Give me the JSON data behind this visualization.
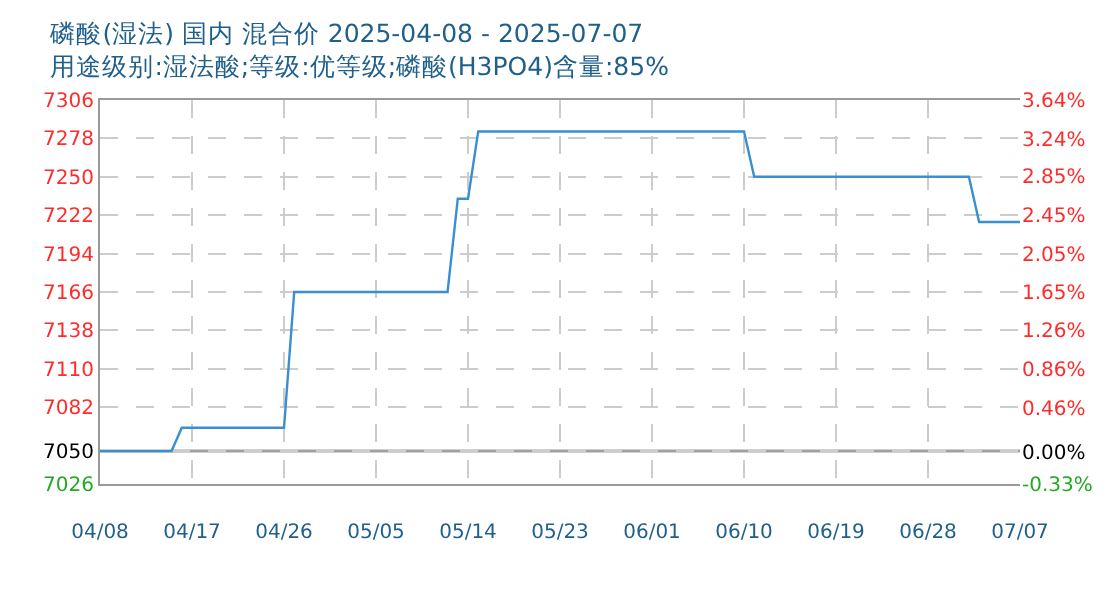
{
  "chart_data": {
    "type": "line",
    "title": "磷酸(湿法) 国内 混合价 2025-04-08 - 2025-07-07",
    "subtitle": "用途级别:湿法酸;等级:优等级;磷酸(H3PO4)含量:85%",
    "x": [
      "2025-04-08",
      "2025-04-15",
      "2025-04-16",
      "2025-04-26",
      "2025-04-27",
      "2025-05-12",
      "2025-05-13",
      "2025-05-14",
      "2025-05-15",
      "2025-06-10",
      "2025-06-11",
      "2025-07-02",
      "2025-07-03",
      "2025-07-07"
    ],
    "series": [
      {
        "color": "#3a8fd0",
        "values": [
          7050,
          7050,
          7067,
          7067,
          7166,
          7166,
          7234,
          7234,
          7283,
          7283,
          7250,
          7250,
          7217,
          7217
        ]
      }
    ],
    "xlim": [
      "2025-04-08",
      "2025-07-07"
    ],
    "xticks": [
      {
        "value": "2025-04-08",
        "label": "04/08"
      },
      {
        "value": "2025-04-17",
        "label": "04/17"
      },
      {
        "value": "2025-04-26",
        "label": "04/26"
      },
      {
        "value": "2025-05-05",
        "label": "05/05"
      },
      {
        "value": "2025-05-14",
        "label": "05/14"
      },
      {
        "value": "2025-05-23",
        "label": "05/23"
      },
      {
        "value": "2025-06-01",
        "label": "06/01"
      },
      {
        "value": "2025-06-10",
        "label": "06/10"
      },
      {
        "value": "2025-06-19",
        "label": "06/19"
      },
      {
        "value": "2025-06-28",
        "label": "06/28"
      },
      {
        "value": "2025-07-07",
        "label": "07/07"
      }
    ],
    "ylim": [
      7026,
      7306
    ],
    "yticks": [
      7026,
      7050,
      7082,
      7110,
      7138,
      7166,
      7194,
      7222,
      7250,
      7278,
      7306
    ],
    "y2lim": [
      -0.33,
      3.64
    ],
    "y2ticks": [
      {
        "value": -0.33,
        "label": "-0.33%"
      },
      {
        "value": 0,
        "label": "0.00%"
      },
      {
        "value": 0.46,
        "label": "0.46%"
      },
      {
        "value": 0.86,
        "label": "0.86%"
      },
      {
        "value": 1.26,
        "label": "1.26%"
      },
      {
        "value": 1.65,
        "label": "1.65%"
      },
      {
        "value": 2.05,
        "label": "2.05%"
      },
      {
        "value": 2.45,
        "label": "2.45%"
      },
      {
        "value": 2.85,
        "label": "2.85%"
      },
      {
        "value": 3.24,
        "label": "3.24%"
      },
      {
        "value": 3.64,
        "label": "3.64%"
      }
    ],
    "ref_lines": [
      {
        "axis": "y",
        "value": 7050,
        "color": "#a0a0a0"
      }
    ],
    "grid": true,
    "legend": false,
    "marker": "none",
    "line_style": "solid"
  }
}
